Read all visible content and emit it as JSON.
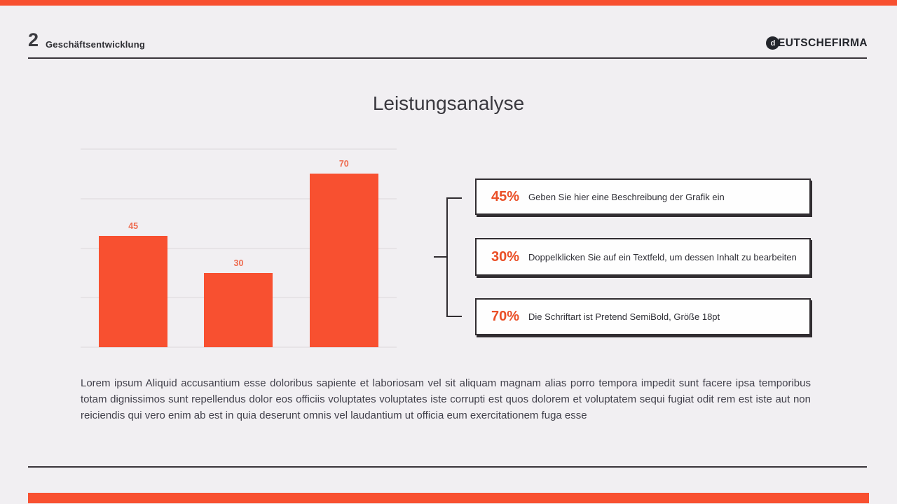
{
  "colors": {
    "accent": "#F85030",
    "bar_label": "#EE6B4F",
    "pct": "#EA4F27",
    "background": "#F1EFF2",
    "ink": "#312D31"
  },
  "header": {
    "page_number": "2",
    "section_title": "Geschäftsentwicklung",
    "brand": "DEUTSCHEFIRMA"
  },
  "title": "Leistungsanalyse",
  "chart_data": {
    "type": "bar",
    "categories": [
      "",
      "",
      ""
    ],
    "values": [
      45,
      30,
      70
    ],
    "labels": [
      "45",
      "30",
      "70"
    ],
    "title": "",
    "xlabel": "",
    "ylabel": "",
    "ylim": [
      0,
      80
    ],
    "gridlines": [
      0,
      20,
      40,
      60,
      80
    ],
    "grid": true,
    "tick_labels_visible": false,
    "legend": "none",
    "bar_color": "#F85030",
    "label_color": "#EE6B4F"
  },
  "callouts": [
    {
      "pct": "45%",
      "text": "Geben Sie hier eine Beschreibung der Grafik ein"
    },
    {
      "pct": "30%",
      "text": "Doppelklicken Sie auf ein Textfeld, um dessen Inhalt zu bearbeiten"
    },
    {
      "pct": "70%",
      "text": "Die Schriftart ist Pretend SemiBold, Größe 18pt"
    }
  ],
  "paragraph": "Lorem ipsum Aliquid accusantium esse doloribus sapiente et laboriosam vel sit aliquam magnam alias porro tempora impedit sunt facere ipsa temporibus totam dignissimos sunt repellendus dolor eos officiis voluptates voluptates iste corrupti est quos dolorem et voluptatem sequi fugiat odit rem est iste aut non reiciendis qui vero enim ab est in quia deserunt omnis vel laudantium ut officia eum exercitationem fuga esse",
  "logo_icon_glyph": "d"
}
